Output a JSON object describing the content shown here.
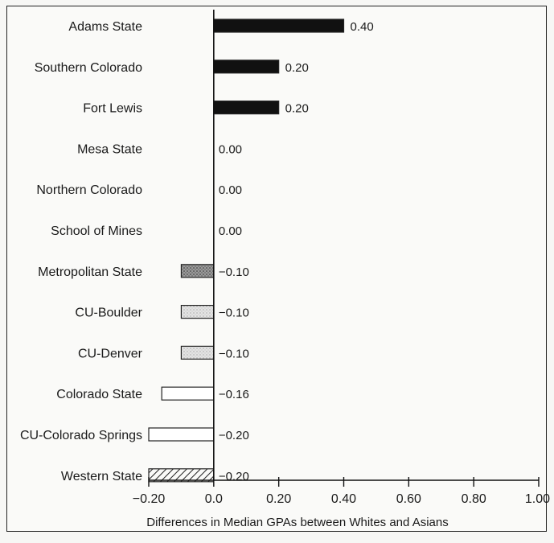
{
  "chart_data": {
    "type": "bar",
    "orientation": "horizontal",
    "categories": [
      "Adams State",
      "Southern Colorado",
      "Fort Lewis",
      "Mesa State",
      "Northern Colorado",
      "School of Mines",
      "Metropolitan State",
      "CU-Boulder",
      "CU-Denver",
      "Colorado State",
      "CU-Colorado Springs",
      "Western State"
    ],
    "values": [
      0.4,
      0.2,
      0.2,
      0.0,
      0.0,
      0.0,
      -0.1,
      -0.1,
      -0.1,
      -0.16,
      -0.2,
      -0.2
    ],
    "value_labels": [
      "0.40",
      "0.20",
      "0.20",
      "0.00",
      "0.00",
      "0.00",
      "−0.10",
      "−0.10",
      "−0.10",
      "−0.16",
      "−0.20",
      "−0.20"
    ],
    "bar_fills": [
      "solid",
      "solid",
      "solid",
      "none",
      "none",
      "none",
      "dark-stipple",
      "light-stipple",
      "light-stipple",
      "white",
      "white",
      "hatched"
    ],
    "xlabel": "Differences in Median GPAs between Whites and Asians",
    "xlim": [
      -0.2,
      1.0
    ],
    "xticks": [
      -0.2,
      0.0,
      0.2,
      0.4,
      0.6,
      0.8,
      1.0
    ],
    "xtick_labels": [
      "−0.20",
      "0.0",
      "0.20",
      "0.40",
      "0.60",
      "0.80",
      "1.00"
    ],
    "grid": false,
    "colors": {
      "solid": "#111111",
      "outline": "#222222",
      "background": "#fafaf8"
    }
  }
}
